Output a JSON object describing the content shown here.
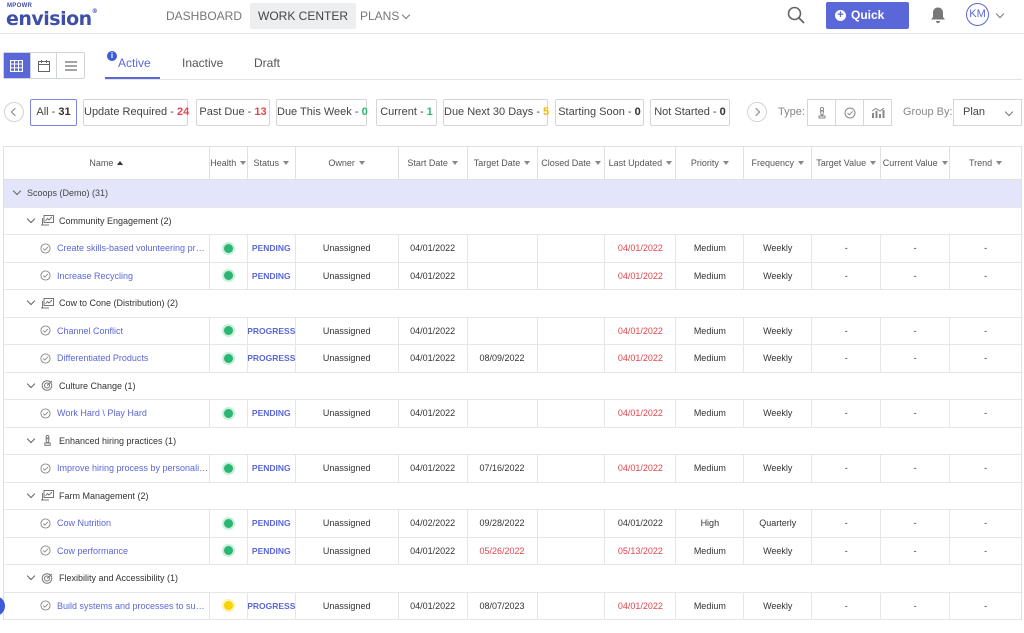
{
  "brand": {
    "sup": "MPOWR",
    "name": "envision",
    "reg": "®"
  },
  "nav": {
    "dashboard": "DASHBOARD",
    "work_center": "WORK CENTER",
    "plans": "PLANS"
  },
  "quick_add": "Quick Add",
  "avatar": "KM",
  "tabs": {
    "active": "Active",
    "inactive": "Inactive",
    "draft": "Draft"
  },
  "filters": [
    {
      "label": "All - ",
      "count": "31",
      "color": "#333"
    },
    {
      "label": "Update Required - ",
      "count": "24",
      "color": "#e0464c"
    },
    {
      "label": "Past Due - ",
      "count": "13",
      "color": "#e0464c"
    },
    {
      "label": "Due This Week - ",
      "count": "0",
      "color": "#2bb673"
    },
    {
      "label": "Current - ",
      "count": "1",
      "color": "#2bb673"
    },
    {
      "label": "Due Next 30 Days - ",
      "count": "5",
      "color": "#f2b705"
    },
    {
      "label": "Starting Soon - ",
      "count": "0",
      "color": "#333"
    },
    {
      "label": "Not Started - ",
      "count": "0",
      "color": "#333"
    }
  ],
  "type_label": "Type:",
  "group_by_label": "Group By:",
  "group_by_value": "Plan",
  "columns": [
    "Name",
    "Health",
    "Status",
    "Owner",
    "Start Date",
    "Target Date",
    "Closed Date",
    "Last Updated",
    "Priority",
    "Frequency",
    "Target Value",
    "Current Value",
    "Trend"
  ],
  "colors": {
    "green": "#2bb673",
    "yellow": "#f5d400",
    "accent": "#5a67d8",
    "red": "#e0464c"
  },
  "plan_row": "Scoops (Demo) (31)",
  "groups": [
    {
      "name": "Community Engagement (2)",
      "icon": "initiative-icon",
      "items": [
        {
          "name": "Create skills-based volunteering progra...",
          "health": "green",
          "status": "PENDING",
          "owner": "Unassigned",
          "start": "04/01/2022",
          "target": "",
          "target_red": false,
          "closed": "",
          "updated": "04/01/2022",
          "updated_red": true,
          "priority": "Medium",
          "frequency": "Weekly",
          "target_value": "-",
          "current_value": "-",
          "trend": "-"
        },
        {
          "name": "Increase Recycling",
          "health": "green",
          "status": "PENDING",
          "owner": "Unassigned",
          "start": "04/01/2022",
          "target": "",
          "target_red": false,
          "closed": "",
          "updated": "04/01/2022",
          "updated_red": true,
          "priority": "Medium",
          "frequency": "Weekly",
          "target_value": "-",
          "current_value": "-",
          "trend": "-"
        }
      ]
    },
    {
      "name": "Cow to Cone (Distribution) (2)",
      "icon": "initiative-icon",
      "items": [
        {
          "name": "Channel Conflict",
          "health": "green",
          "status": "PROGRESS",
          "owner": "Unassigned",
          "start": "04/01/2022",
          "target": "",
          "target_red": false,
          "closed": "",
          "updated": "04/01/2022",
          "updated_red": true,
          "priority": "Medium",
          "frequency": "Weekly",
          "target_value": "-",
          "current_value": "-",
          "trend": "-"
        },
        {
          "name": "Differentiated Products",
          "health": "green",
          "status": "PROGRESS",
          "owner": "Unassigned",
          "start": "04/01/2022",
          "target": "08/09/2022",
          "target_red": false,
          "closed": "",
          "updated": "04/01/2022",
          "updated_red": true,
          "priority": "Medium",
          "frequency": "Weekly",
          "target_value": "-",
          "current_value": "-",
          "trend": "-"
        }
      ]
    },
    {
      "name": "Culture Change (1)",
      "icon": "target-icon",
      "items": [
        {
          "name": "Work Hard \\ Play Hard",
          "health": "green",
          "status": "PENDING",
          "owner": "Unassigned",
          "start": "04/01/2022",
          "target": "",
          "target_red": false,
          "closed": "",
          "updated": "04/01/2022",
          "updated_red": true,
          "priority": "Medium",
          "frequency": "Weekly",
          "target_value": "-",
          "current_value": "-",
          "trend": "-"
        }
      ]
    },
    {
      "name": "Enhanced hiring practices (1)",
      "icon": "chess-icon",
      "items": [
        {
          "name": "Improve hiring process by personalizing...",
          "health": "green",
          "status": "PENDING",
          "owner": "Unassigned",
          "start": "04/01/2022",
          "target": "07/16/2022",
          "target_red": false,
          "closed": "",
          "updated": "04/01/2022",
          "updated_red": true,
          "priority": "Medium",
          "frequency": "Weekly",
          "target_value": "-",
          "current_value": "-",
          "trend": "-"
        }
      ]
    },
    {
      "name": "Farm Management (2)",
      "icon": "initiative-icon",
      "items": [
        {
          "name": "Cow Nutrition",
          "health": "green",
          "status": "PENDING",
          "owner": "Unassigned",
          "start": "04/02/2022",
          "target": "09/28/2022",
          "target_red": false,
          "closed": "",
          "updated": "04/01/2022",
          "updated_red": false,
          "priority": "High",
          "frequency": "Quarterly",
          "target_value": "-",
          "current_value": "-",
          "trend": "-"
        },
        {
          "name": "Cow performance",
          "health": "green",
          "status": "PENDING",
          "owner": "Unassigned",
          "start": "04/01/2022",
          "target": "05/26/2022",
          "target_red": true,
          "closed": "",
          "updated": "05/13/2022",
          "updated_red": true,
          "priority": "Medium",
          "frequency": "Weekly",
          "target_value": "-",
          "current_value": "-",
          "trend": "-"
        }
      ]
    },
    {
      "name": "Flexibility and Accessibility (1)",
      "icon": "target-icon",
      "items": [
        {
          "name": "Build systems and processes to suppor...",
          "health": "yellow",
          "status": "PROGRESS",
          "owner": "Unassigned",
          "start": "04/01/2022",
          "target": "08/07/2023",
          "target_red": false,
          "closed": "",
          "updated": "04/01/2022",
          "updated_red": true,
          "priority": "Medium",
          "frequency": "Weekly",
          "target_value": "-",
          "current_value": "-",
          "trend": "-"
        }
      ]
    }
  ]
}
